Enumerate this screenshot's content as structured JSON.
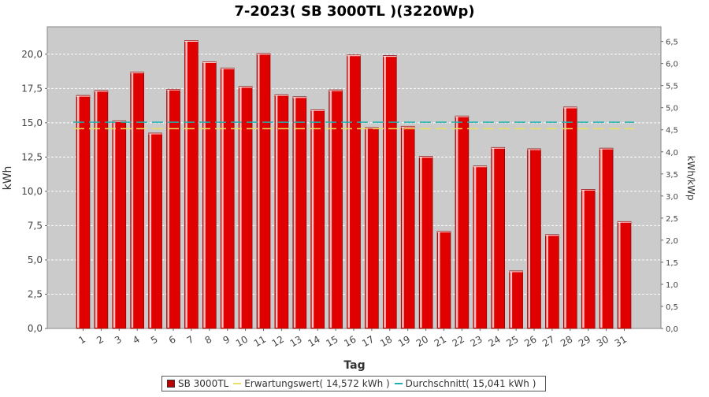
{
  "chart_data": {
    "type": "bar",
    "title": "7-2023( SB 3000TL )(3220Wp)",
    "xlabel": "Tag",
    "ylabel": "kWh",
    "y2label": "kWh/kWp",
    "categories": [
      "1",
      "2",
      "3",
      "4",
      "5",
      "6",
      "7",
      "8",
      "9",
      "10",
      "11",
      "12",
      "13",
      "14",
      "15",
      "16",
      "17",
      "18",
      "19",
      "20",
      "21",
      "22",
      "23",
      "24",
      "25",
      "26",
      "27",
      "28",
      "29",
      "30",
      "31"
    ],
    "series": [
      {
        "name": "SB 3000TL",
        "color": "#e00000",
        "values": [
          17.0,
          17.35,
          15.15,
          18.7,
          14.25,
          17.45,
          21.0,
          19.45,
          19.0,
          17.65,
          20.05,
          17.05,
          16.9,
          15.95,
          17.4,
          19.95,
          14.65,
          19.9,
          14.75,
          12.55,
          7.1,
          15.5,
          11.85,
          13.2,
          4.2,
          13.1,
          6.85,
          16.15,
          10.15,
          13.15,
          7.8
        ]
      }
    ],
    "reference_lines": [
      {
        "name": "Erwartungswert( 14,572 kWh )",
        "value": 14.572,
        "color": "#e8e060"
      },
      {
        "name": "Durchschnitt( 15,041 kWh )",
        "value": 15.041,
        "color": "#20b0b0"
      }
    ],
    "ylim": [
      0,
      22
    ],
    "yticks": [
      "0,0",
      "2,5",
      "5,0",
      "7,5",
      "10,0",
      "12,5",
      "15,0",
      "17,5",
      "20,0"
    ],
    "y2lim": [
      0,
      6.832
    ],
    "y2ticks": [
      "0,0",
      "0,5",
      "1,0",
      "1,5",
      "2,0",
      "2,5",
      "3,0",
      "3,5",
      "4,0",
      "4,5",
      "5,0",
      "5,5",
      "6,0",
      "6,5"
    ],
    "grid": true,
    "legend_position": "bottom"
  },
  "legend": {
    "series_label": "SB 3000TL",
    "expect_label": "Erwartungswert( 14,572 kWh )",
    "avg_label": "Durchschnitt( 15,041 kWh )"
  }
}
